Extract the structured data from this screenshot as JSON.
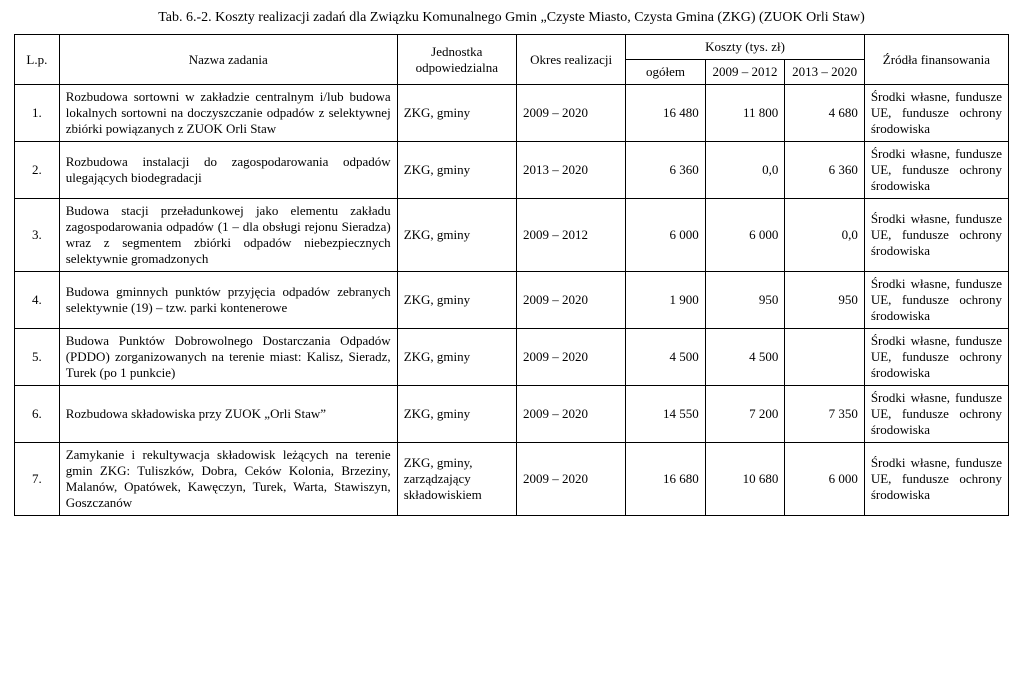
{
  "title": "Tab. 6.-2. Koszty realizacji zadań dla Związku Komunalnego Gmin „Czyste Miasto, Czysta Gmina (ZKG) (ZUOK Orli Staw)",
  "headers": {
    "lp": "L.p.",
    "task": "Nazwa zadania",
    "unit": "Jednostka odpowiedzialna",
    "period": "Okres realizacji",
    "costs": "Koszty (tys. zł)",
    "cost_total": "ogółem",
    "cost_2009_2012": "2009 – 2012",
    "cost_2013_2020": "2013 – 2020",
    "sources": "Źródła finansowania"
  },
  "rows": [
    {
      "lp": "1.",
      "task": "Rozbudowa sortowni w zakładzie centralnym i/lub budowa lokalnych sortowni na doczyszczanie odpadów z selektywnej zbiórki powiązanych z ZUOK Orli Staw",
      "unit": "ZKG, gminy",
      "period": "2009 – 2020",
      "total": "16 480",
      "c1": "11 800",
      "c2": "4 680",
      "sources": "Środki własne, fundusze UE, fundusze ochrony środowiska"
    },
    {
      "lp": "2.",
      "task": "Rozbudowa instalacji do zagospodarowania odpadów ulegających biodegradacji",
      "unit": "ZKG, gminy",
      "period": "2013 – 2020",
      "total": "6 360",
      "c1": "0,0",
      "c2": "6 360",
      "sources": "Środki własne, fundusze UE, fundusze ochrony środowiska"
    },
    {
      "lp": "3.",
      "task": "Budowa stacji przeładunkowej jako elementu zakładu zagospodarowania odpadów (1 – dla obsługi rejonu Sieradza) wraz z segmentem zbiórki odpadów niebezpiecznych selektywnie gromadzonych",
      "unit": "ZKG, gminy",
      "period": "2009 – 2012",
      "total": "6 000",
      "c1": "6 000",
      "c2": "0,0",
      "sources": "Środki własne, fundusze UE, fundusze ochrony środowiska"
    },
    {
      "lp": "4.",
      "task": "Budowa gminnych punktów przyjęcia odpadów zebranych selektywnie (19) – tzw. parki kontenerowe",
      "unit": "ZKG, gminy",
      "period": "2009 – 2020",
      "total": "1 900",
      "c1": "950",
      "c2": "950",
      "sources": "Środki własne, fundusze UE, fundusze ochrony środowiska"
    },
    {
      "lp": "5.",
      "task": "Budowa Punktów Dobrowolnego Dostarczania Odpadów (PDDO) zorganizowanych na terenie miast: Kalisz, Sieradz, Turek (po 1 punkcie)",
      "unit": "ZKG, gminy",
      "period": "2009 – 2020",
      "total": "4 500",
      "c1": "4 500",
      "c2": "",
      "sources": "Środki własne, fundusze UE, fundusze ochrony środowiska"
    },
    {
      "lp": "6.",
      "task": "Rozbudowa składowiska przy ZUOK „Orli Staw”",
      "unit": "ZKG, gminy",
      "period": "2009 – 2020",
      "total": "14 550",
      "c1": "7 200",
      "c2": "7 350",
      "sources": "Środki własne, fundusze UE, fundusze ochrony środowiska"
    },
    {
      "lp": "7.",
      "task": "Zamykanie i rekultywacja składowisk leżących na terenie gmin ZKG: Tuliszków, Dobra, Ceków Kolonia, Brzeziny, Malanów, Opatówek, Kawęczyn, Turek, Warta, Stawiszyn, Goszczanów",
      "unit": "ZKG, gminy, zarządzający składowiskiem",
      "period": "2009 – 2020",
      "total": "16 680",
      "c1": "10 680",
      "c2": "6 000",
      "sources": "Środki własne, fundusze UE, fundusze ochrony środowiska"
    }
  ]
}
